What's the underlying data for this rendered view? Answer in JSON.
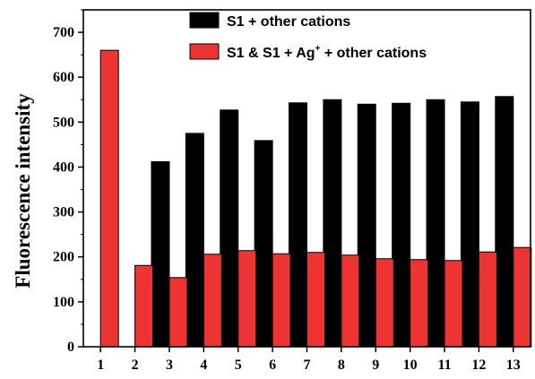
{
  "chart_data": {
    "type": "bar",
    "ylabel": "Fluorescence intensity",
    "xlabel": "",
    "ylim": [
      0,
      750
    ],
    "yticks": [
      0,
      100,
      200,
      300,
      400,
      500,
      600,
      700
    ],
    "categories": [
      "1",
      "2",
      "3",
      "4",
      "5",
      "6",
      "7",
      "8",
      "9",
      "10",
      "11",
      "12",
      "13"
    ],
    "legend_position": "top-right",
    "series": [
      {
        "name": "S1 + other cations",
        "color": "#000000",
        "values": [
          null,
          null,
          412,
          475,
          527,
          459,
          543,
          550,
          540,
          542,
          550,
          545,
          557
        ]
      },
      {
        "name_parts": {
          "before": "S1 & S1 + Ag",
          "sup": "+",
          "after": " + other  cations"
        },
        "color": "#ee3333",
        "values": [
          660,
          181,
          154,
          206,
          214,
          207,
          210,
          204,
          196,
          194,
          192,
          211,
          221
        ]
      }
    ]
  }
}
